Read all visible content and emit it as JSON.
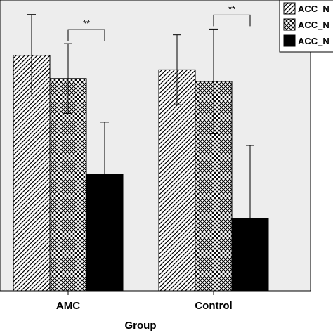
{
  "chart_data": {
    "type": "bar",
    "title": "",
    "xlabel": "Group",
    "ylabel": "",
    "categories": [
      "AMC",
      "Control"
    ],
    "ylim": [
      0,
      100
    ],
    "grid": false,
    "legend_position": "top-right",
    "series": [
      {
        "name": "ACC_N",
        "pattern": "diagonal-hatch",
        "values": [
          81,
          76
        ],
        "errors": [
          14,
          12
        ]
      },
      {
        "name": "ACC_N",
        "pattern": "crosshatch",
        "values": [
          73,
          72
        ],
        "errors": [
          12,
          18
        ]
      },
      {
        "name": "ACC_N",
        "pattern": "solid-black",
        "values": [
          40,
          25
        ],
        "errors": [
          18,
          25
        ]
      }
    ],
    "significance": [
      {
        "category": "AMC",
        "from_series": 1,
        "to_series": 2,
        "label": "**"
      },
      {
        "category": "Control",
        "from_series": 1,
        "to_series": 2,
        "label": "**"
      }
    ],
    "colors": {
      "plot_background": "#ededed",
      "bar_edge": "#000000",
      "hatch": "#000000"
    }
  }
}
